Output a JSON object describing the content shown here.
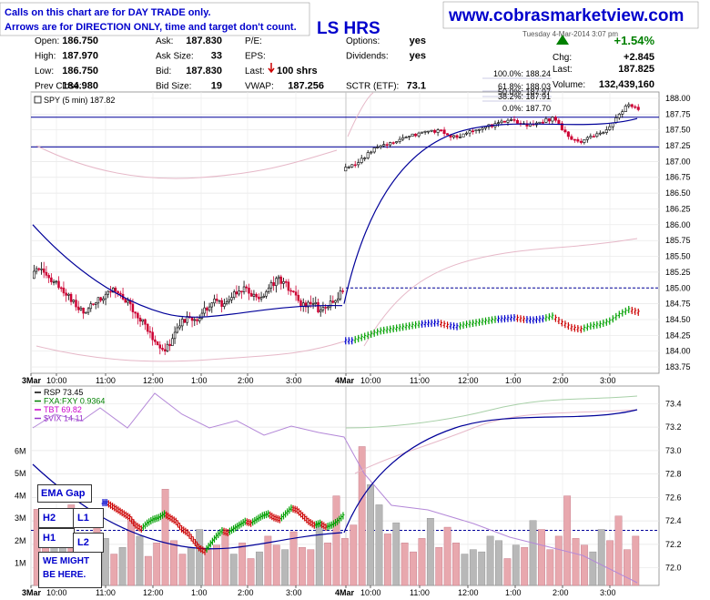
{
  "header": {
    "notice_line1": "Calls on this chart are for DAY TRADE only.",
    "notice_line2": "Arrows are for DIRECTION ONLY, time and target don't count.",
    "title_partial": "LS HRS",
    "website": "www.cobrasmarketview.com",
    "datetime_partial": "Tuesday 4-Mar-2014 3:07 pm"
  },
  "quote": {
    "rows": [
      {
        "l1": "Open:",
        "v1": "186.750",
        "l2": "Ask:",
        "v2": "187.830",
        "l3": "P/E:",
        "v3": "",
        "l4": "Options:",
        "v4": "yes"
      },
      {
        "l1": "High:",
        "v1": "187.970",
        "l2": "Ask Size:",
        "v2": "33",
        "l3": "EPS:",
        "v3": "",
        "l4": "Dividends:",
        "v4": "yes"
      },
      {
        "l1": "Low:",
        "v1": "186.750",
        "l2": "Bid:",
        "v2": "187.830",
        "l3": "Last:",
        "v3": "100 shrs",
        "l4": "",
        "v4": ""
      },
      {
        "l1": "Prev Close:",
        "v1": "184.980",
        "l2": "Bid Size:",
        "v2": "19",
        "l3": "VWAP:",
        "v3": "187.256",
        "l4": "SCTR (ETF):",
        "v4": "73.1"
      }
    ],
    "pct_change": "+1.54%",
    "chg_label": "Chg:",
    "chg_value": "+2.845",
    "last_label": "Last:",
    "last_value": "187.825",
    "volume_label": "Volume:",
    "volume_value": "132,439,160",
    "up_color": "#008000"
  },
  "price_panel": {
    "legend": "SPY (5 min) 187.82",
    "fib_labels": [
      "100.0%: 188.24",
      "61.8%: 188.03",
      "50.0%: 187.97",
      "38.2%: 187.91",
      "0.0%: 187.70"
    ],
    "hlines": [
      187.7,
      187.23
    ],
    "dashed_level": 185.0
  },
  "indicator_panel": {
    "legend": [
      {
        "text": "RSP 73.45",
        "color": "#000000"
      },
      {
        "text": "FXA:FXY 0.9364",
        "color": "#008000"
      },
      {
        "text": "TBT 69.82",
        "color": "#cc00cc"
      },
      {
        "text": "$VIX 14.11",
        "color": "#9933cc"
      }
    ],
    "dashed_level": 72.32
  },
  "annotations": {
    "ema_gap": "EMA Gap",
    "h2": "H2",
    "h1": "H1",
    "l1": "L1",
    "l2": "L2",
    "might_line1": "WE MIGHT",
    "might_line2": "BE HERE."
  },
  "chart_data": [
    {
      "type": "candlestick",
      "title": "SPY (5 min) 187.82",
      "x_ticks": [
        "3Mar",
        "10:00",
        "11:00",
        "12:00",
        "1:00",
        "2:00",
        "3:00",
        "4Mar",
        "10:00",
        "11:00",
        "12:00",
        "1:00",
        "2:00",
        "3:00"
      ],
      "ylim": [
        183.65,
        188.1
      ],
      "y_ticks": [
        188.0,
        187.75,
        187.5,
        187.25,
        187.0,
        186.75,
        186.5,
        186.25,
        186.0,
        185.75,
        185.5,
        185.25,
        185.0,
        184.75,
        184.5,
        184.25,
        184.0,
        183.75
      ],
      "session1_close": [
        185.3,
        185.2,
        185.1,
        185.0,
        184.9,
        184.7,
        184.6,
        184.75,
        184.85,
        184.9,
        185.0,
        184.9,
        184.8,
        184.6,
        184.5,
        184.3,
        184.1,
        184.0,
        184.2,
        184.4,
        184.55,
        184.5,
        184.6,
        184.7,
        184.8,
        184.75,
        184.85,
        184.95,
        185.0,
        184.9,
        184.85,
        185.0,
        185.15,
        185.1,
        184.95,
        184.8,
        184.7,
        184.75,
        184.65,
        184.7,
        184.8,
        184.95
      ],
      "session2_close": [
        186.95,
        187.05,
        187.15,
        187.25,
        187.3,
        187.35,
        187.4,
        187.45,
        187.48,
        187.5,
        187.42,
        187.38,
        187.45,
        187.5,
        187.55,
        187.6,
        187.62,
        187.65,
        187.6,
        187.58,
        187.62,
        187.7,
        187.5,
        187.35,
        187.3,
        187.4,
        187.45,
        187.55,
        187.75,
        187.9,
        187.82
      ],
      "ema_session1_end": 184.75,
      "ema_session2_end": 187.6,
      "upper_band": [
        185.7,
        185.75,
        185.8,
        185.85
      ],
      "series": [
        {
          "name": "SPY (5 min)",
          "note": "price candles"
        },
        {
          "name": "EMA",
          "color": "#000099"
        }
      ]
    },
    {
      "type": "bar",
      "title": "RSP 73.45",
      "y_ticks_right": [
        73.4,
        73.2,
        73.0,
        72.8,
        72.6,
        72.4,
        72.2,
        72.0
      ],
      "y_ticks_left": [
        "6M",
        "5M",
        "4M",
        "3M",
        "2M",
        "1M"
      ],
      "volume_mil": [
        3.4,
        2.2,
        1.8,
        2.1,
        3.6,
        2.0,
        1.5,
        2.8,
        2.1,
        1.4,
        1.7,
        2.9,
        2.2,
        1.3,
        1.9,
        4.3,
        2.0,
        1.4,
        1.7,
        2.5,
        1.6,
        1.8,
        2.3,
        1.4,
        1.9,
        1.2,
        1.5,
        2.2,
        1.8,
        1.6,
        2.4,
        1.7,
        1.6,
        2.8,
        1.9,
        4.0,
        2.1,
        2.7,
        6.2,
        4.5,
        3.6,
        2.3,
        2.8,
        1.9,
        1.5,
        2.1,
        3.0,
        1.7,
        2.6,
        1.9,
        1.4,
        1.6,
        1.5,
        2.2,
        2.0,
        1.2,
        1.8,
        1.7,
        2.9,
        2.5,
        1.6,
        2.2,
        4.0,
        2.1,
        1.8,
        1.5,
        2.5,
        2.0,
        3.1,
        1.6,
        2.2
      ]
    }
  ]
}
